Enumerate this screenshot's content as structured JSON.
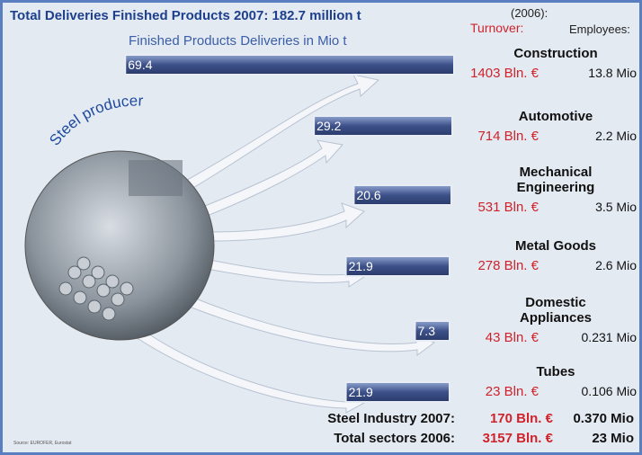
{
  "chart_data": {
    "type": "bar",
    "title": "Total Deliveries Finished Products 2007: 182.7 million t",
    "subtitle": "Finished Products Deliveries in Mio t",
    "year_label": "(2006):",
    "turnover_header": "Turnover:",
    "employees_header": "Employees:",
    "circle_label": "Steel producer",
    "categories": [
      "Construction",
      "Automotive",
      "Mechanical Engineering",
      "Metal Goods",
      "Domestic Appliances",
      "Tubes"
    ],
    "values": [
      69.4,
      29.2,
      20.6,
      21.9,
      7.3,
      21.9
    ],
    "turnover": [
      "1403 Bln. €",
      "714 Bln. €",
      "531 Bln. €",
      "278 Bln. €",
      "43 Bln. €",
      "23 Bln. €"
    ],
    "employees": [
      "13.8 Mio",
      "2.2 Mio",
      "3.5 Mio",
      "2.6 Mio",
      "0.231 Mio",
      "0.106 Mio"
    ],
    "totals": [
      {
        "label": "Steel Industry 2007:",
        "turnover": "170 Bln. €",
        "employees": "0.370 Mio"
      },
      {
        "label": "Total sectors 2006:",
        "turnover": "3157 Bln. €",
        "employees": "23 Mio"
      }
    ],
    "source": "Source: EUROFER, Eurostat",
    "color": "#3d5189"
  }
}
